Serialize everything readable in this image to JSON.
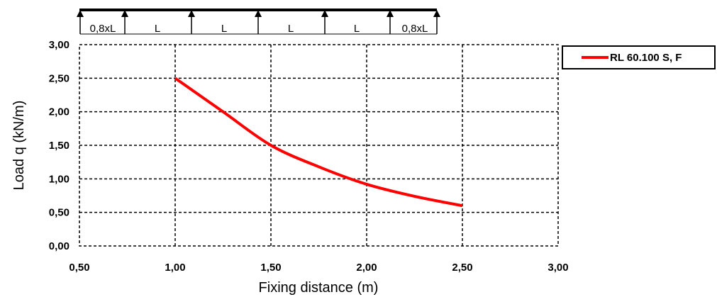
{
  "chart_data": {
    "type": "line",
    "xlabel": "Fixing distance (m)",
    "ylabel": "Load q (kN/m)",
    "xlim": [
      0.5,
      3.0
    ],
    "ylim": [
      0.0,
      3.0
    ],
    "x_ticks": [
      "0,50",
      "1,00",
      "1,50",
      "2,00",
      "2,50",
      "3,00"
    ],
    "y_ticks": [
      "0,00",
      "0,50",
      "1,00",
      "1,50",
      "2,00",
      "2,50",
      "3,00"
    ],
    "grid": true,
    "legend_position": "top-right",
    "series": [
      {
        "name": "RL 60.100 S, F",
        "color": "#ff0000",
        "x": [
          1.0,
          1.25,
          1.5,
          1.75,
          2.0,
          2.25,
          2.5
        ],
        "y": [
          2.5,
          2.0,
          1.5,
          1.18,
          0.92,
          0.74,
          0.6
        ]
      }
    ]
  },
  "beam_diagram": {
    "span_labels": [
      "0,8xL",
      "L",
      "L",
      "L",
      "L",
      "0,8xL"
    ],
    "icon": "continuous-beam-support-arrows-icon"
  }
}
